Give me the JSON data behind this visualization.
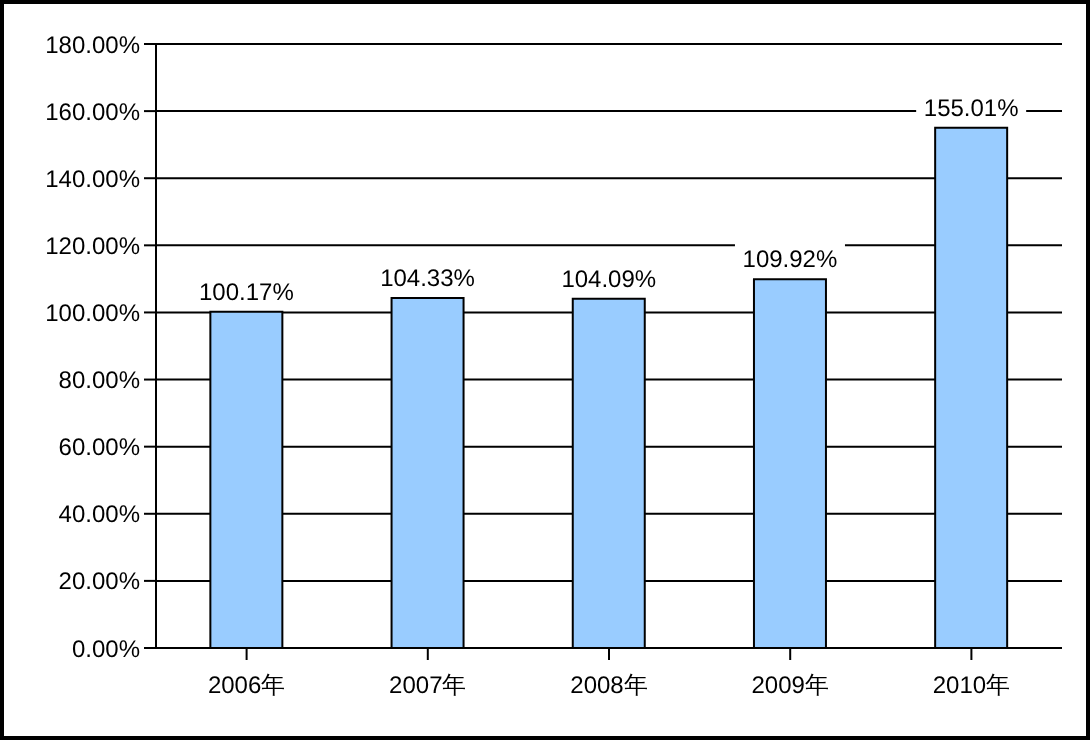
{
  "chart_data": {
    "type": "bar",
    "categories": [
      "2006年",
      "2007年",
      "2008年",
      "2009年",
      "2010年"
    ],
    "values": [
      100.17,
      104.33,
      104.09,
      109.92,
      155.01
    ],
    "value_labels": [
      "100.17%",
      "104.33%",
      "104.09%",
      "109.92%",
      "155.01%"
    ],
    "color": "#99ccff",
    "ylim": [
      0,
      180
    ],
    "yticks": [
      {
        "value": 0,
        "label": "0.00%"
      },
      {
        "value": 20,
        "label": "20.00%"
      },
      {
        "value": 40,
        "label": "40.00%"
      },
      {
        "value": 60,
        "label": "60.00%"
      },
      {
        "value": 80,
        "label": "80.00%"
      },
      {
        "value": 100,
        "label": "100.00%"
      },
      {
        "value": 120,
        "label": "120.00%"
      },
      {
        "value": 140,
        "label": "140.00%"
      },
      {
        "value": 160,
        "label": "160.00%"
      },
      {
        "value": 180,
        "label": "180.00%"
      }
    ],
    "grid": "y"
  }
}
